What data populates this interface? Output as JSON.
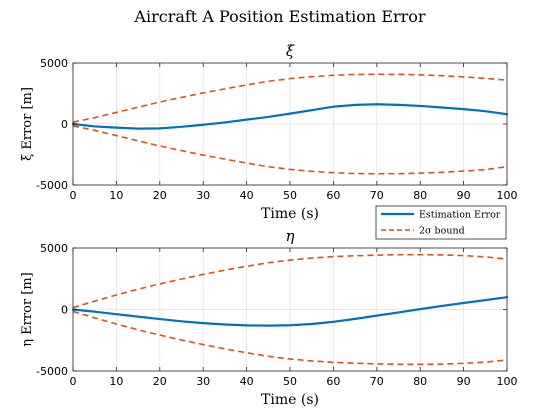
{
  "figure": {
    "title": "Aircraft A Position Estimation Error"
  },
  "legend": {
    "placement": "bottom-right of first panel",
    "entries": [
      {
        "label": "Estimation Error",
        "color": "#0072BD",
        "style": "solid"
      },
      {
        "label": "2σ bound",
        "color": "#D95319",
        "style": "dashed"
      }
    ]
  },
  "chart_data": [
    {
      "type": "line",
      "title": "ξ",
      "xlabel": "Time (s)",
      "ylabel": "ξ Error [m]",
      "xlim": [
        0,
        100
      ],
      "ylim": [
        -5000,
        5000
      ],
      "xticks": [
        0,
        10,
        20,
        30,
        40,
        50,
        60,
        70,
        80,
        90,
        100
      ],
      "yticks": [
        -5000,
        0,
        5000
      ],
      "grid": true,
      "x": [
        0,
        5,
        10,
        15,
        20,
        25,
        30,
        35,
        40,
        45,
        50,
        55,
        60,
        65,
        70,
        75,
        80,
        85,
        90,
        95,
        100
      ],
      "series": [
        {
          "name": "Estimation Error",
          "color": "#0072BD",
          "style": "solid",
          "values": [
            0,
            -200,
            -300,
            -380,
            -360,
            -230,
            -60,
            130,
            360,
            580,
            850,
            1130,
            1420,
            1570,
            1620,
            1570,
            1480,
            1350,
            1220,
            1050,
            800
          ]
        },
        {
          "name": "2σ bound",
          "color": "#D95319",
          "style": "dashed",
          "values": [
            150,
            520,
            950,
            1380,
            1800,
            2180,
            2550,
            2880,
            3200,
            3500,
            3720,
            3880,
            3990,
            4060,
            4080,
            4070,
            4030,
            3960,
            3860,
            3740,
            3600
          ]
        },
        {
          "name": "2σ bound",
          "color": "#D95319",
          "style": "dashed",
          "values": [
            -150,
            -520,
            -950,
            -1380,
            -1800,
            -2180,
            -2550,
            -2880,
            -3200,
            -3500,
            -3720,
            -3880,
            -3990,
            -4060,
            -4080,
            -4070,
            -4030,
            -3960,
            -3860,
            -3740,
            -3500
          ]
        }
      ]
    },
    {
      "type": "line",
      "title": "η",
      "xlabel": "Time (s)",
      "ylabel": "η Error [m]",
      "xlim": [
        0,
        100
      ],
      "ylim": [
        -5000,
        5000
      ],
      "xticks": [
        0,
        10,
        20,
        30,
        40,
        50,
        60,
        70,
        80,
        90,
        100
      ],
      "yticks": [
        -5000,
        0,
        5000
      ],
      "grid": true,
      "x": [
        0,
        5,
        10,
        15,
        20,
        25,
        30,
        35,
        40,
        45,
        50,
        55,
        60,
        65,
        70,
        75,
        80,
        85,
        90,
        95,
        100
      ],
      "series": [
        {
          "name": "Estimation Error",
          "color": "#0072BD",
          "style": "solid",
          "values": [
            0,
            -180,
            -380,
            -580,
            -780,
            -960,
            -1110,
            -1220,
            -1290,
            -1310,
            -1280,
            -1180,
            -1000,
            -760,
            -500,
            -240,
            30,
            290,
            530,
            760,
            1000
          ]
        },
        {
          "name": "2σ bound",
          "color": "#D95319",
          "style": "dashed",
          "values": [
            150,
            680,
            1180,
            1650,
            2080,
            2480,
            2850,
            3200,
            3520,
            3800,
            4020,
            4180,
            4300,
            4370,
            4420,
            4450,
            4460,
            4440,
            4380,
            4280,
            4100
          ]
        },
        {
          "name": "2σ bound",
          "color": "#D95319",
          "style": "dashed",
          "values": [
            -150,
            -680,
            -1180,
            -1650,
            -2080,
            -2480,
            -2850,
            -3200,
            -3520,
            -3800,
            -4020,
            -4180,
            -4300,
            -4370,
            -4420,
            -4450,
            -4460,
            -4440,
            -4380,
            -4280,
            -4100
          ]
        }
      ]
    }
  ]
}
